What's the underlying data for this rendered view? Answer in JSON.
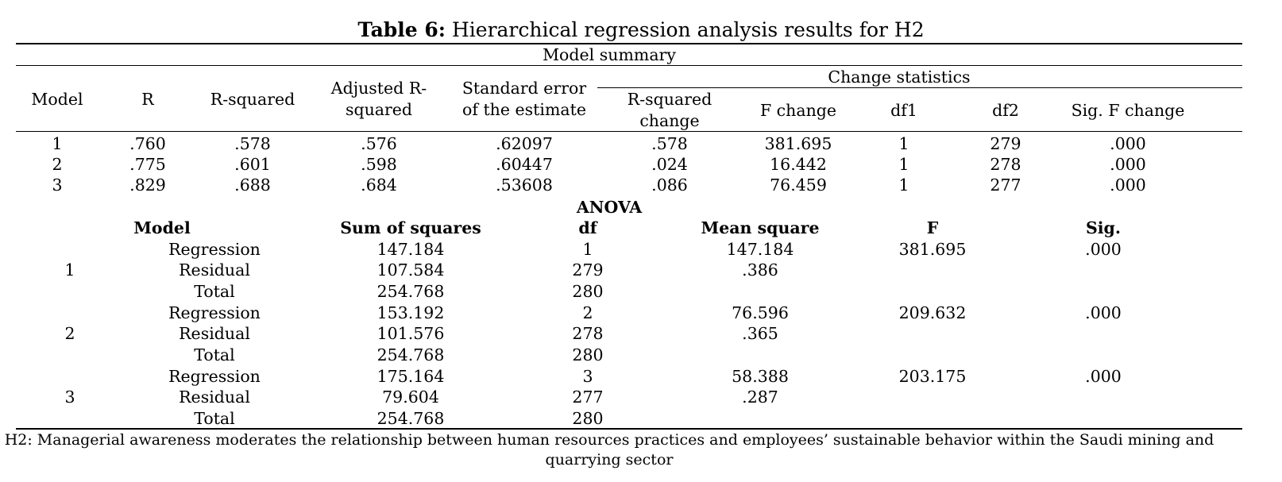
{
  "title": {
    "label": "Table 6:",
    "text": " Hierarchical regression analysis results for H2"
  },
  "model_summary": {
    "heading": "Model summary",
    "change_heading": "Change statistics",
    "headers": {
      "model": "Model",
      "r": "R",
      "r_squared": "R-squared",
      "adj_line1": "Adjusted R-",
      "adj_line2": "squared",
      "se_line1": "Standard error",
      "se_line2": "of the estimate",
      "rsc_line1": "R-squared",
      "rsc_line2": "change",
      "f_change": "F change",
      "df1": "df1",
      "df2": "df2",
      "sig_f": "Sig. F change"
    },
    "rows": [
      {
        "model": "1",
        "r": ".760",
        "r2": ".578",
        "adj": ".576",
        "se": ".62097",
        "r2c": ".578",
        "fc": "381.695",
        "df1": "1",
        "df2": "279",
        "sig": ".000"
      },
      {
        "model": "2",
        "r": ".775",
        "r2": ".601",
        "adj": ".598",
        "se": ".60447",
        "r2c": ".024",
        "fc": "16.442",
        "df1": "1",
        "df2": "278",
        "sig": ".000"
      },
      {
        "model": "3",
        "r": ".829",
        "r2": ".688",
        "adj": ".684",
        "se": ".53608",
        "r2c": ".086",
        "fc": "76.459",
        "df1": "1",
        "df2": "277",
        "sig": ".000"
      }
    ]
  },
  "anova": {
    "heading": "ANOVA",
    "headers": {
      "model": "Model",
      "ss": "Sum of squares",
      "df": "df",
      "ms": "Mean square",
      "f": "F",
      "sig": "Sig."
    },
    "models": [
      {
        "model": "1",
        "rows": [
          {
            "type": "Regression",
            "ss": "147.184",
            "df": "1",
            "ms": "147.184",
            "f": "381.695",
            "sig": ".000"
          },
          {
            "type": "Residual",
            "ss": "107.584",
            "df": "279",
            "ms": ".386",
            "f": "",
            "sig": ""
          },
          {
            "type": "Total",
            "ss": "254.768",
            "df": "280",
            "ms": "",
            "f": "",
            "sig": ""
          }
        ]
      },
      {
        "model": "2",
        "rows": [
          {
            "type": "Regression",
            "ss": "153.192",
            "df": "2",
            "ms": "76.596",
            "f": "209.632",
            "sig": ".000"
          },
          {
            "type": "Residual",
            "ss": "101.576",
            "df": "278",
            "ms": ".365",
            "f": "",
            "sig": ""
          },
          {
            "type": "Total",
            "ss": "254.768",
            "df": "280",
            "ms": "",
            "f": "",
            "sig": ""
          }
        ]
      },
      {
        "model": "3",
        "rows": [
          {
            "type": "Regression",
            "ss": "175.164",
            "df": "3",
            "ms": "58.388",
            "f": "203.175",
            "sig": ".000"
          },
          {
            "type": "Residual",
            "ss": "79.604",
            "df": "277",
            "ms": ".287",
            "f": "",
            "sig": ""
          },
          {
            "type": "Total",
            "ss": "254.768",
            "df": "280",
            "ms": "",
            "f": "",
            "sig": ""
          }
        ]
      }
    ]
  },
  "footnote": {
    "line1": "H2: Managerial awareness moderates the relationship between human resources practices and employees’ sustainable behavior within the Saudi mining and",
    "line2": "quarrying sector"
  }
}
